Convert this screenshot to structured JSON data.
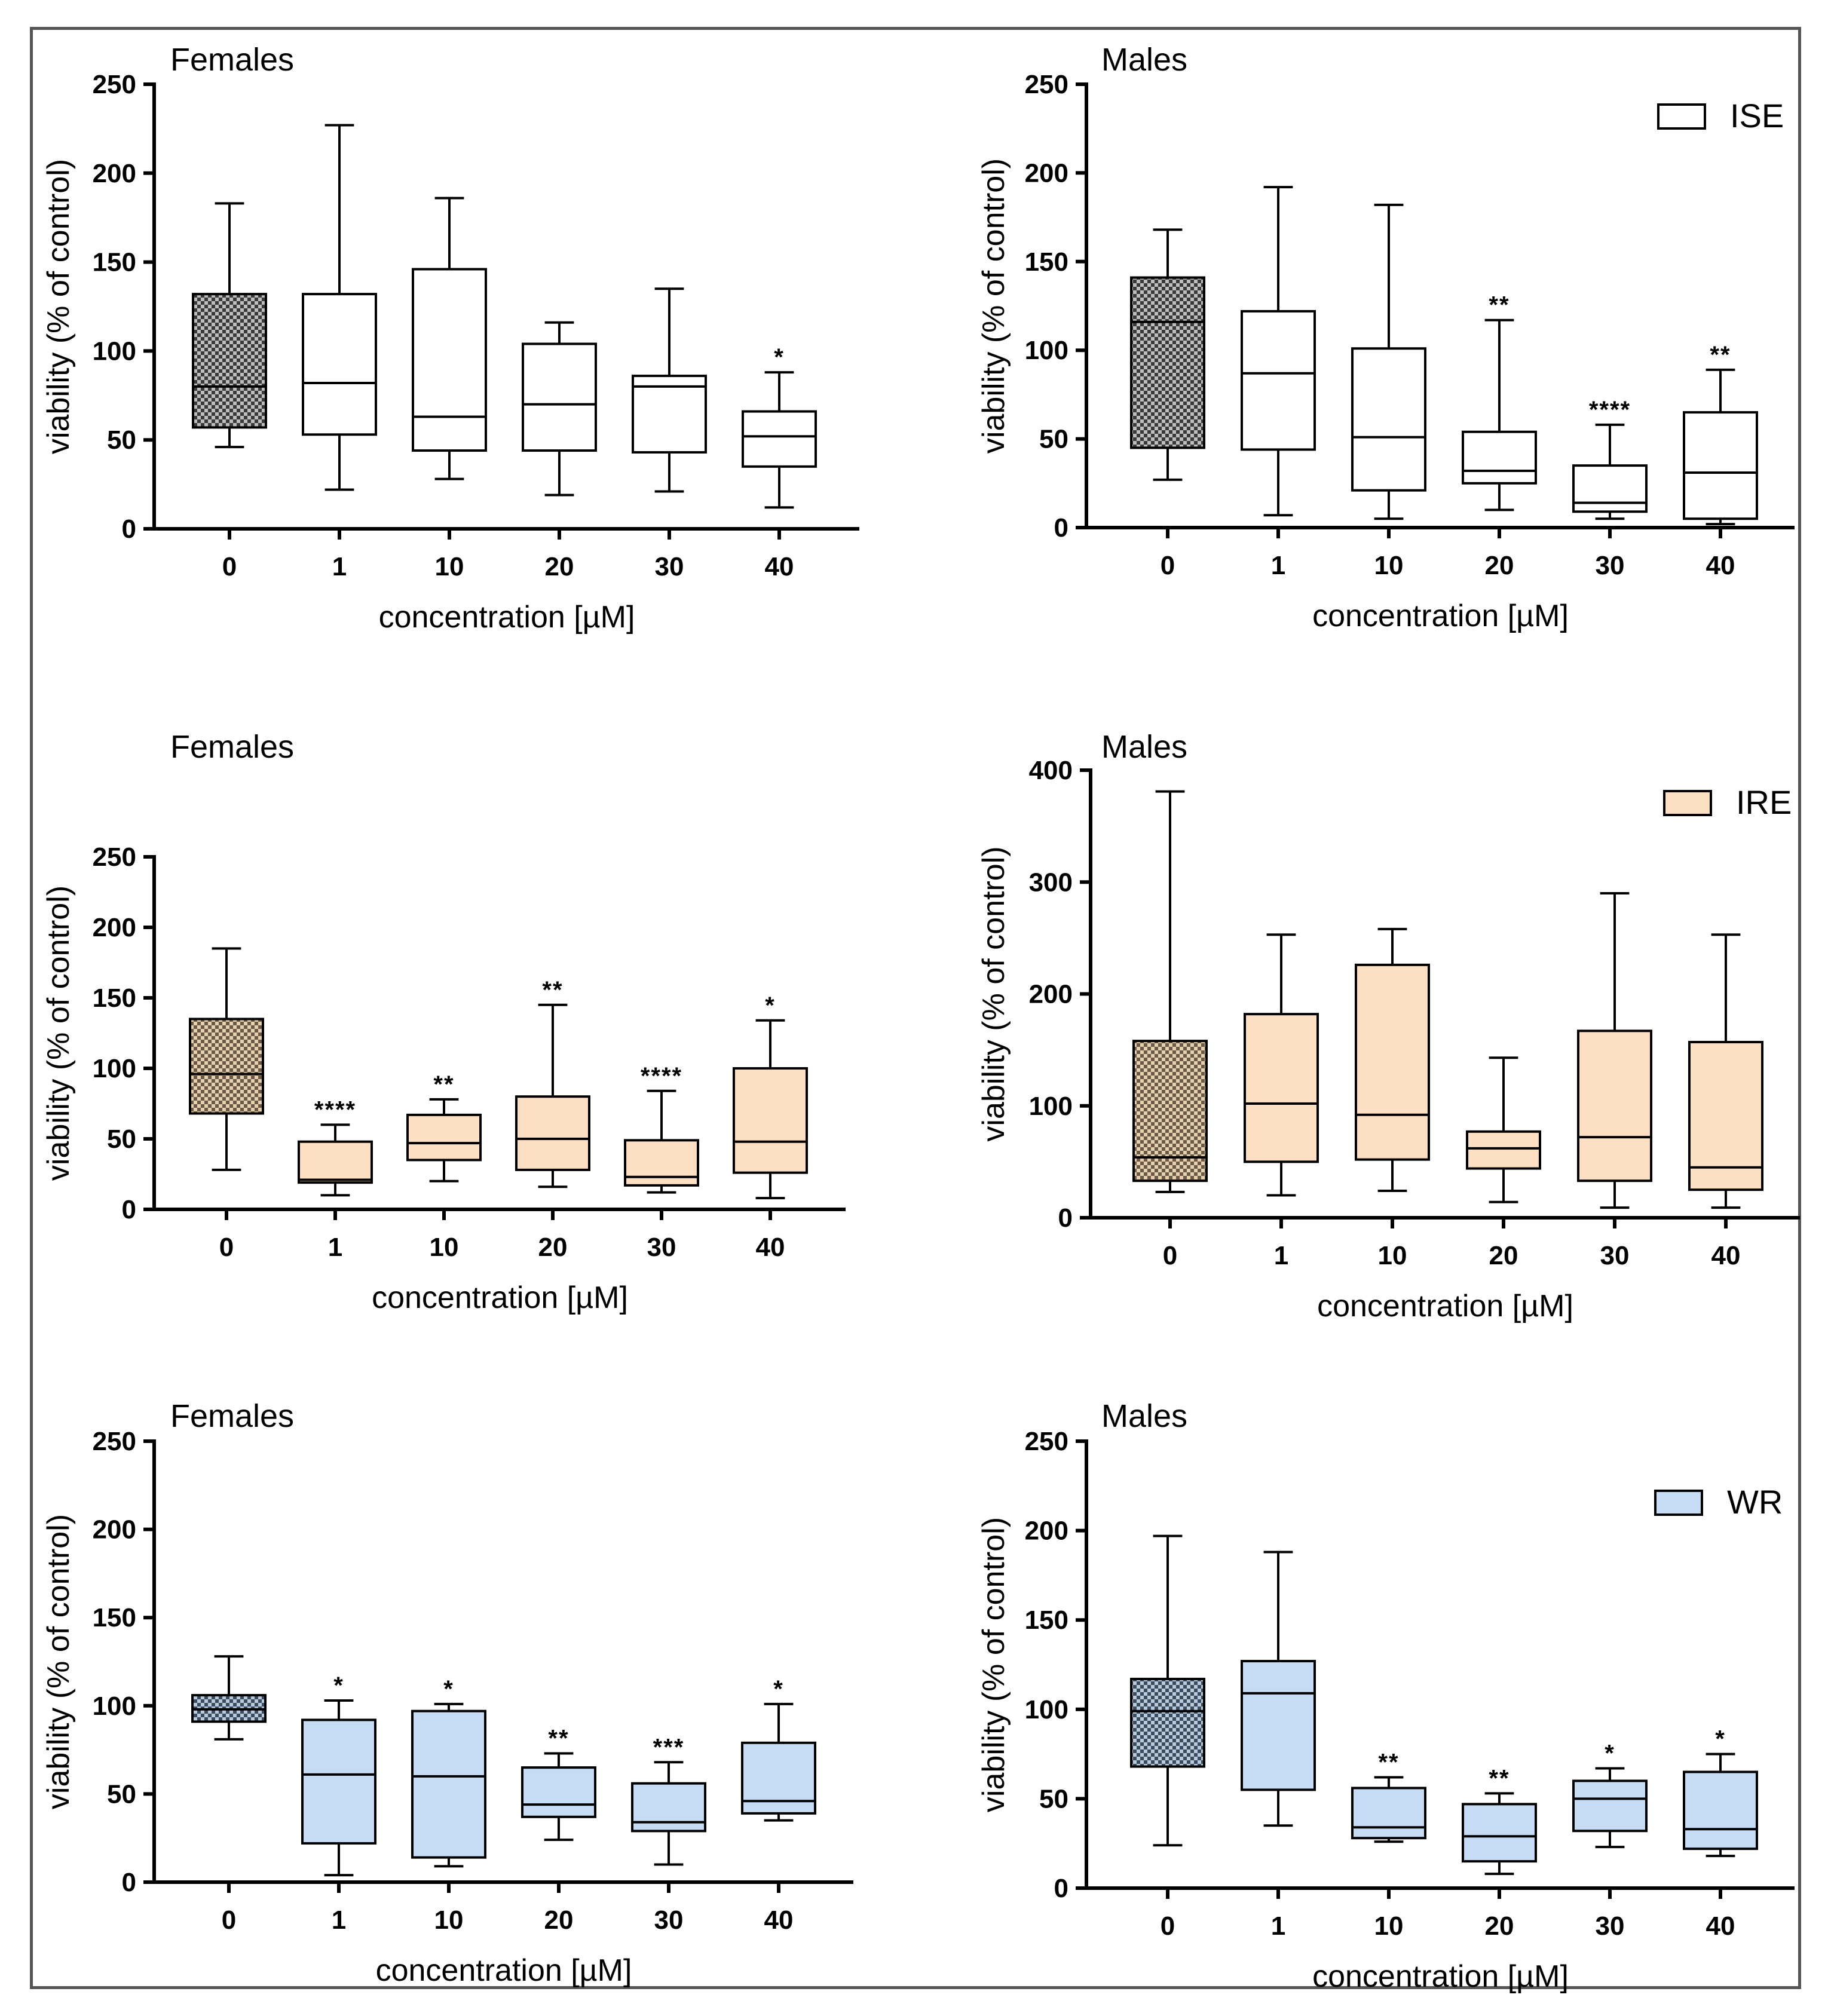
{
  "figure_border": "#555555",
  "chart_data": [
    {
      "id": "ise-females",
      "type": "box",
      "title": "Females",
      "xlabel": "concentration [µM]",
      "ylabel": "viability (% of control)",
      "ylim": [
        0,
        250
      ],
      "yticks": [
        0,
        50,
        100,
        150,
        200,
        250
      ],
      "categories": [
        "0",
        "1",
        "10",
        "20",
        "30",
        "40"
      ],
      "fill": "#ffffff",
      "control_pattern": "checker-gray",
      "boxes": [
        {
          "min": 46,
          "q1": 57,
          "median": 80,
          "q3": 132,
          "max": 183,
          "sig": ""
        },
        {
          "min": 22,
          "q1": 53,
          "median": 82,
          "q3": 132,
          "max": 227,
          "sig": ""
        },
        {
          "min": 28,
          "q1": 44,
          "median": 63,
          "q3": 146,
          "max": 186,
          "sig": ""
        },
        {
          "min": 19,
          "q1": 44,
          "median": 70,
          "q3": 104,
          "max": 116,
          "sig": ""
        },
        {
          "min": 21,
          "q1": 43,
          "median": 80,
          "q3": 86,
          "max": 135,
          "sig": ""
        },
        {
          "min": 12,
          "q1": 35,
          "median": 52,
          "q3": 66,
          "max": 88,
          "sig": "*"
        }
      ]
    },
    {
      "id": "ise-males",
      "type": "box",
      "title": "Males",
      "xlabel": "concentration [µM]",
      "ylabel": "viability (% of control)",
      "ylim": [
        0,
        250
      ],
      "yticks": [
        0,
        50,
        100,
        150,
        200,
        250
      ],
      "categories": [
        "0",
        "1",
        "10",
        "20",
        "30",
        "40"
      ],
      "fill": "#ffffff",
      "control_pattern": "checker-gray",
      "legend": {
        "label": "ISE",
        "color": "#ffffff"
      },
      "boxes": [
        {
          "min": 27,
          "q1": 45,
          "median": 116,
          "q3": 141,
          "max": 168,
          "sig": ""
        },
        {
          "min": 7,
          "q1": 44,
          "median": 87,
          "q3": 122,
          "max": 192,
          "sig": ""
        },
        {
          "min": 5,
          "q1": 21,
          "median": 51,
          "q3": 101,
          "max": 182,
          "sig": ""
        },
        {
          "min": 10,
          "q1": 25,
          "median": 32,
          "q3": 54,
          "max": 117,
          "sig": "**"
        },
        {
          "min": 5,
          "q1": 9,
          "median": 14,
          "q3": 35,
          "max": 58,
          "sig": "****"
        },
        {
          "min": 2,
          "q1": 5,
          "median": 31,
          "q3": 65,
          "max": 89,
          "sig": "**"
        }
      ]
    },
    {
      "id": "ire-females",
      "type": "box",
      "title": "Females",
      "xlabel": "concentration [µM]",
      "ylabel": "viability (% of control)",
      "ylim": [
        0,
        250
      ],
      "yticks": [
        0,
        50,
        100,
        150,
        200,
        250
      ],
      "categories": [
        "0",
        "1",
        "10",
        "20",
        "30",
        "40"
      ],
      "fill": "#fde0c3",
      "control_pattern": "checker-beige",
      "boxes": [
        {
          "min": 28,
          "q1": 68,
          "median": 96,
          "q3": 135,
          "max": 185,
          "sig": ""
        },
        {
          "min": 10,
          "q1": 19,
          "median": 21,
          "q3": 48,
          "max": 60,
          "sig": "****"
        },
        {
          "min": 20,
          "q1": 35,
          "median": 47,
          "q3": 67,
          "max": 78,
          "sig": "**"
        },
        {
          "min": 16,
          "q1": 28,
          "median": 50,
          "q3": 80,
          "max": 145,
          "sig": "**"
        },
        {
          "min": 12,
          "q1": 17,
          "median": 23,
          "q3": 49,
          "max": 84,
          "sig": "****"
        },
        {
          "min": 8,
          "q1": 26,
          "median": 48,
          "q3": 100,
          "max": 134,
          "sig": "*"
        }
      ]
    },
    {
      "id": "ire-males",
      "type": "box",
      "title": "Males",
      "xlabel": "concentration [µM]",
      "ylabel": "viability (% of control)",
      "ylim": [
        0,
        400
      ],
      "yticks": [
        0,
        100,
        200,
        300,
        400
      ],
      "categories": [
        "0",
        "1",
        "10",
        "20",
        "30",
        "40"
      ],
      "fill": "#fde0c3",
      "control_pattern": "checker-beige",
      "legend": {
        "label": "IRE",
        "color": "#fde0c3"
      },
      "boxes": [
        {
          "min": 23,
          "q1": 33,
          "median": 54,
          "q3": 158,
          "max": 381,
          "sig": ""
        },
        {
          "min": 20,
          "q1": 50,
          "median": 102,
          "q3": 182,
          "max": 253,
          "sig": ""
        },
        {
          "min": 24,
          "q1": 52,
          "median": 92,
          "q3": 226,
          "max": 258,
          "sig": ""
        },
        {
          "min": 14,
          "q1": 44,
          "median": 62,
          "q3": 77,
          "max": 143,
          "sig": ""
        },
        {
          "min": 9,
          "q1": 33,
          "median": 72,
          "q3": 167,
          "max": 290,
          "sig": ""
        },
        {
          "min": 9,
          "q1": 25,
          "median": 45,
          "q3": 157,
          "max": 253,
          "sig": ""
        }
      ]
    },
    {
      "id": "wr-females",
      "type": "box",
      "title": "Females",
      "xlabel": "concentration [µM]",
      "ylabel": "viability (% of control)",
      "ylim": [
        0,
        250
      ],
      "yticks": [
        0,
        50,
        100,
        150,
        200,
        250
      ],
      "categories": [
        "0",
        "1",
        "10",
        "20",
        "30",
        "40"
      ],
      "fill": "#c6dcf4",
      "control_pattern": "checker-blue",
      "boxes": [
        {
          "min": 81,
          "q1": 91,
          "median": 98,
          "q3": 106,
          "max": 128,
          "sig": ""
        },
        {
          "min": 4,
          "q1": 22,
          "median": 61,
          "q3": 92,
          "max": 103,
          "sig": "*"
        },
        {
          "min": 9,
          "q1": 14,
          "median": 60,
          "q3": 97,
          "max": 101,
          "sig": "*"
        },
        {
          "min": 24,
          "q1": 37,
          "median": 44,
          "q3": 65,
          "max": 73,
          "sig": "**"
        },
        {
          "min": 10,
          "q1": 29,
          "median": 34,
          "q3": 56,
          "max": 68,
          "sig": "***"
        },
        {
          "min": 35,
          "q1": 39,
          "median": 46,
          "q3": 79,
          "max": 101,
          "sig": "*"
        }
      ]
    },
    {
      "id": "wr-males",
      "type": "box",
      "title": "Males",
      "xlabel": "concentration [µM]",
      "ylabel": "viability (% of control)",
      "ylim": [
        0,
        250
      ],
      "yticks": [
        0,
        50,
        100,
        150,
        200,
        250
      ],
      "categories": [
        "0",
        "1",
        "10",
        "20",
        "30",
        "40"
      ],
      "fill": "#c6dcf4",
      "control_pattern": "checker-blue",
      "legend": {
        "label": "WR",
        "color": "#c6dcf4"
      },
      "boxes": [
        {
          "min": 24,
          "q1": 68,
          "median": 99,
          "q3": 117,
          "max": 197,
          "sig": ""
        },
        {
          "min": 35,
          "q1": 55,
          "median": 109,
          "q3": 127,
          "max": 188,
          "sig": ""
        },
        {
          "min": 26,
          "q1": 28,
          "median": 34,
          "q3": 56,
          "max": 62,
          "sig": "**"
        },
        {
          "min": 8,
          "q1": 15,
          "median": 29,
          "q3": 47,
          "max": 53,
          "sig": "**"
        },
        {
          "min": 23,
          "q1": 32,
          "median": 50,
          "q3": 60,
          "max": 67,
          "sig": "*"
        },
        {
          "min": 18,
          "q1": 22,
          "median": 33,
          "q3": 65,
          "max": 75,
          "sig": "*"
        }
      ]
    }
  ]
}
